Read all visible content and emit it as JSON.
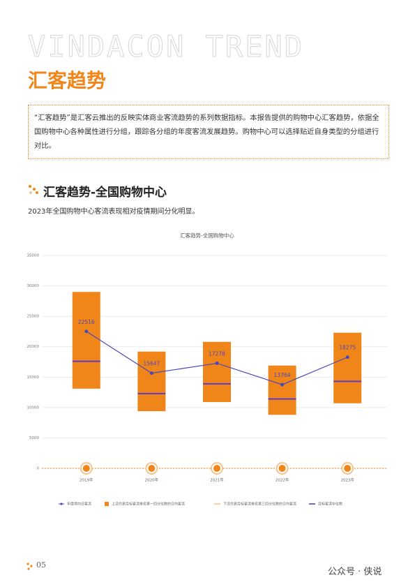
{
  "header": {
    "brand": "VINDACON TREND",
    "title": "汇客趋势"
  },
  "intro": "“汇客趋势”是汇客云推出的反映实体商业客流趋势的系列数据指标。本报告提供的购物中心汇客趋势，依据全国购物中心各种属性进行分组，跟踪各分组的年度客流发展趋势。购物中心可以选择贴近自身类型的分组进行对比。",
  "section": {
    "title": "汇客趋势-全国购物中心",
    "subtitle": "2023年全国购物中心客流表现相对疫情期间分化明显。"
  },
  "chart_data": {
    "type": "box-line",
    "title": "汇客趋势-全国购物中心",
    "categories": [
      "2019年",
      "2020年",
      "2021年",
      "2022年",
      "2023年"
    ],
    "series": [
      {
        "name": "年度场均日客流",
        "color": "#4b47b8",
        "values": [
          22516,
          15647,
          17278,
          13764,
          18275
        ]
      },
      {
        "name": "上沿代表目标客流排名第一四分位数的日均客流",
        "color": "#f0861a",
        "values": [
          29000,
          19200,
          20800,
          16900,
          22300
        ]
      },
      {
        "name": "下沿代表目标客流排名第三四分位数的日均客流",
        "color": "#f6c48c",
        "values": [
          13100,
          9400,
          10900,
          8800,
          10700
        ]
      },
      {
        "name": "目标客流中位数",
        "color": "#5b3cc4",
        "values": [
          17600,
          12300,
          13900,
          11400,
          14300
        ]
      }
    ],
    "ylim": [
      0,
      35000
    ],
    "yticks": [
      0,
      5000,
      10000,
      15000,
      20000,
      25000,
      30000,
      35000
    ],
    "grid": true
  },
  "footer": {
    "page": "05",
    "watermark": "公众号 · 侠说"
  }
}
